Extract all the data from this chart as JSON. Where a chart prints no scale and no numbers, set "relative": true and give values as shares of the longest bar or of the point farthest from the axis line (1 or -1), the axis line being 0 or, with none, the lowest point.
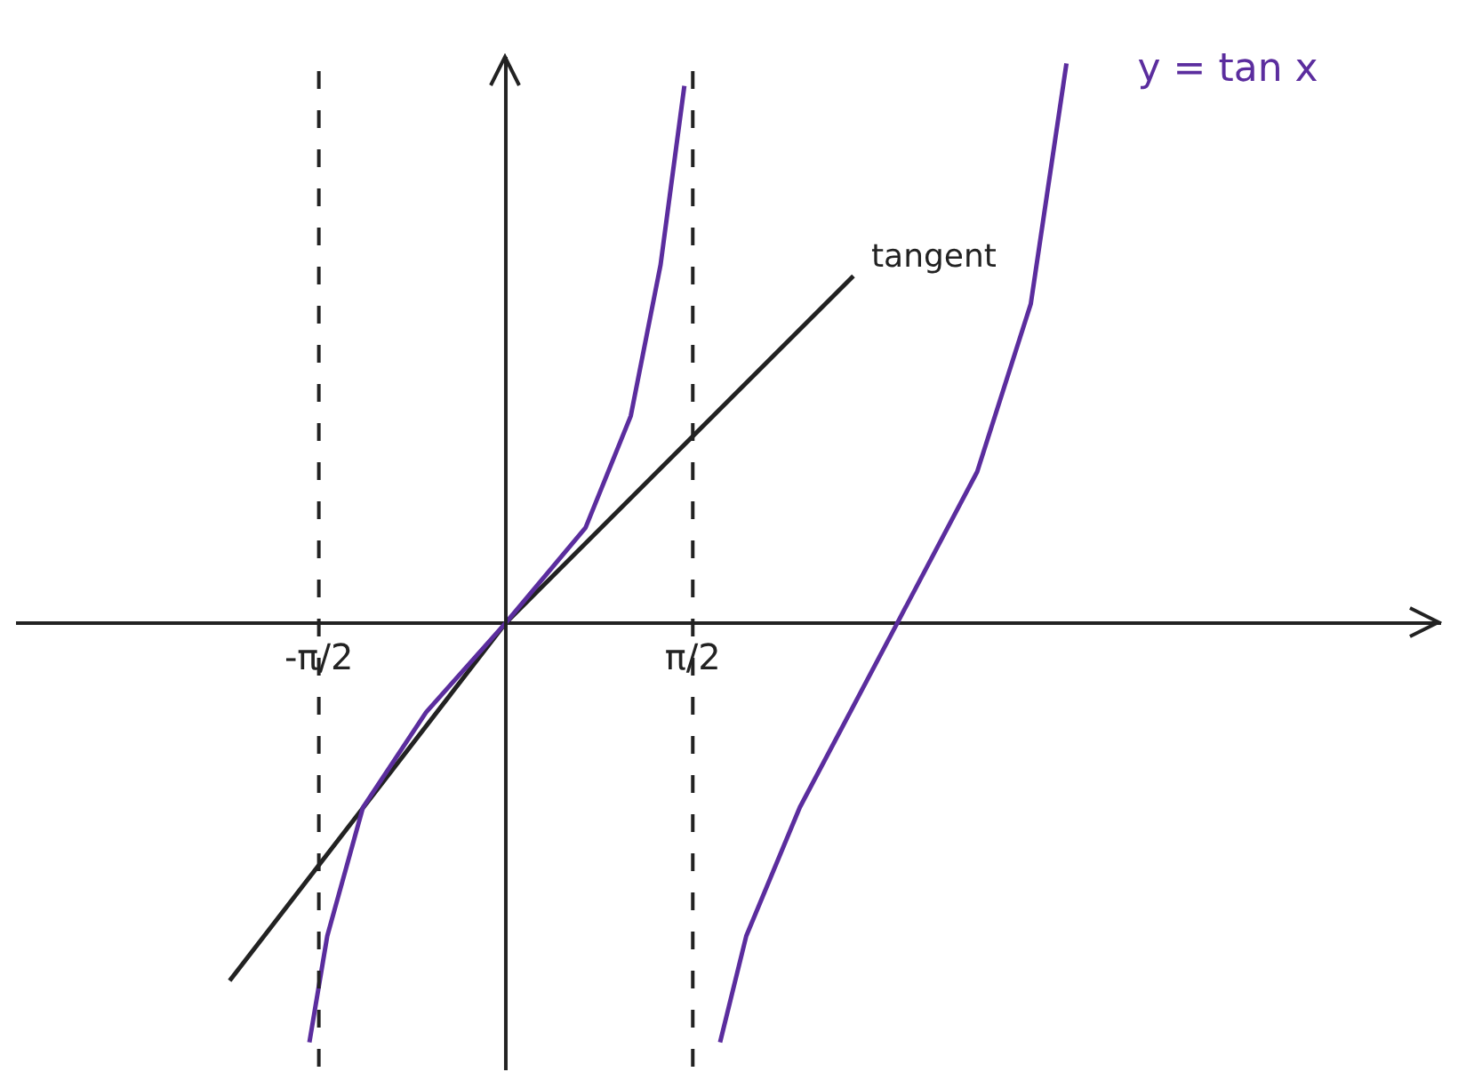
{
  "chart_data": {
    "type": "line",
    "relative": true,
    "grid": false,
    "legend": false,
    "marker": "none",
    "xlim": [
      -4.1,
      7.85
    ],
    "xticks": [
      {
        "value": -1.5708,
        "label": "-π/2"
      },
      {
        "value": 1.5708,
        "label": "π/2"
      }
    ],
    "series": [
      {
        "color": "#5b2d9e",
        "x": [
          -1.65,
          -1.5,
          -1.2,
          -0.67,
          0,
          0.67,
          1.05,
          1.3,
          1.5
        ],
        "values": [
          -0.75,
          -0.56,
          -0.33,
          -0.16,
          0,
          0.17,
          0.37,
          0.64,
          0.96
        ]
      },
      {
        "name": "y = tan x",
        "color": "#5b2d9e",
        "x": [
          1.8,
          2.02,
          2.47,
          3.29,
          3.96,
          4.41,
          4.71
        ],
        "values": [
          -0.75,
          -0.56,
          -0.33,
          0,
          0.27,
          0.57,
          1
        ]
      },
      {
        "color": "#222222",
        "x": [
          -2.32,
          0,
          2.92
        ],
        "values": [
          -0.64,
          0,
          0.62
        ]
      }
    ],
    "ref_lines": [
      {
        "axis": "x",
        "value": -1.5708,
        "line_style": "dashed",
        "color": "#222222"
      },
      {
        "axis": "x",
        "value": 1.5708,
        "line_style": "dashed",
        "color": "#222222"
      }
    ],
    "annotations": [
      "tangent"
    ]
  }
}
